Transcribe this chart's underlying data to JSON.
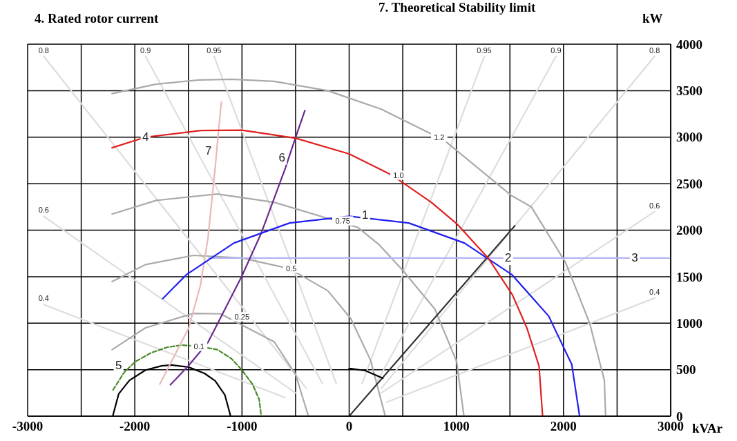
{
  "chart_data": {
    "type": "line",
    "xlabel": "kVAr",
    "ylabel": "kW",
    "xlim": [
      -3000,
      3000
    ],
    "ylim": [
      0,
      4000
    ],
    "xticks": [
      -3000,
      {
        "value": -2500,
        "label": null
      },
      -2000,
      {
        "value": -1500,
        "label": null
      },
      -1000,
      {
        "value": -500,
        "label": null
      },
      0,
      {
        "value": 500,
        "label": null
      },
      1000,
      {
        "value": 1500,
        "label": null
      },
      2000,
      {
        "value": 2500,
        "label": null
      },
      3000
    ],
    "yticks": [
      0,
      500,
      1000,
      1500,
      2000,
      2500,
      3000,
      3500,
      4000
    ],
    "grid": true,
    "legend": false,
    "series": [
      {
        "color": "#dddddd",
        "x": [
          -2850,
          -400
        ],
        "values": [
          3870,
          300
        ]
      },
      {
        "color": "#dddddd",
        "x": [
          -1900,
          -250
        ],
        "values": [
          3870,
          350
        ]
      },
      {
        "color": "#dddddd",
        "x": [
          -1260,
          -120
        ],
        "values": [
          3870,
          350
        ]
      },
      {
        "color": "#dddddd",
        "x": [
          -2850,
          -500
        ],
        "values": [
          2150,
          250
        ]
      },
      {
        "color": "#dddddd",
        "x": [
          -2850,
          -600
        ],
        "values": [
          1200,
          200
        ]
      },
      {
        "color": "#dddddd",
        "x": [
          1260,
          120
        ],
        "values": [
          3870,
          350
        ]
      },
      {
        "color": "#dddddd",
        "x": [
          1930,
          250
        ],
        "values": [
          3870,
          350
        ]
      },
      {
        "color": "#dddddd",
        "x": [
          2850,
          300
        ],
        "values": [
          3870,
          300
        ]
      },
      {
        "color": "#dddddd",
        "x": [
          2850,
          300
        ],
        "values": [
          2200,
          250
        ]
      },
      {
        "color": "#dddddd",
        "x": [
          2850,
          350
        ],
        "values": [
          1270,
          150
        ]
      },
      {
        "color": "#aaaaaa",
        "x": [
          -2212,
          -1800,
          -1400,
          -1092,
          -700,
          -200,
          300,
          890,
          1510,
          1700,
          2020,
          2244,
          2381,
          2393
        ],
        "values": [
          3468,
          3570,
          3615,
          3622,
          3600,
          3500,
          3300,
          2964,
          2375,
          2250,
          1650,
          1000,
          386,
          0
        ]
      },
      {
        "color": "#aaaaaa",
        "x": [
          -2212,
          -1800,
          -1229,
          -700,
          80,
          282,
          507,
          800,
          1003,
          1071
        ],
        "values": [
          2173,
          2320,
          2389,
          2300,
          2030,
          1841,
          1558,
          1150,
          586,
          0
        ]
      },
      {
        "color": "#aaaaaa",
        "x": [
          -2212,
          -1900,
          -1452,
          -1000,
          -560,
          -200,
          16,
          200,
          337
        ],
        "values": [
          1447,
          1630,
          1729,
          1700,
          1587,
          1350,
          1048,
          600,
          0
        ]
      },
      {
        "color": "#aaaaaa",
        "x": [
          -2212,
          -1900,
          -1452,
          -1200,
          -700,
          -500,
          -380
        ],
        "values": [
          715,
          950,
          1105,
          1100,
          800,
          450,
          0
        ]
      },
      {
        "color": "#b4b4f4",
        "x": [
          -1308,
          3000
        ],
        "values": [
          1700,
          1700
        ]
      },
      {
        "color": "#333333",
        "x": [
          0,
          1545
        ],
        "values": [
          0,
          2047
        ]
      },
      {
        "color": "#000000",
        "x": [
          0,
          150,
          314
        ],
        "values": [
          513,
          490,
          408
        ]
      },
      {
        "color": "#000000",
        "x": [
          -2206,
          -2150,
          -2050,
          -1900,
          -1750,
          -1656,
          -1500,
          -1350,
          -1250,
          -1160,
          -1106
        ],
        "values": [
          0,
          240,
          385,
          495,
          541,
          550,
          528,
          460,
          380,
          230,
          0
        ]
      },
      {
        "color": "#4a8a2a",
        "line_style": "dashed",
        "x": [
          -2203,
          -2100,
          -1996,
          -1850,
          -1700,
          -1566,
          -1400,
          -1229,
          -1100,
          -1001,
          -900,
          -840,
          -820
        ],
        "values": [
          282,
          470,
          586,
          680,
          740,
          764,
          750,
          715,
          620,
          497,
          340,
          180,
          0
        ]
      },
      {
        "color": "#e8b8b8",
        "x": [
          -1767,
          -1498,
          -1387,
          -1317,
          -1249,
          -1236,
          -1193
        ],
        "values": [
          344,
          946,
          1410,
          1918,
          2685,
          2856,
          3375
        ]
      },
      {
        "color": "#6a2a90",
        "x": [
          -1668,
          -1504,
          -1317,
          -1001,
          -820,
          -594,
          -563,
          -502,
          -413
        ],
        "values": [
          337,
          536,
          794,
          1506,
          1969,
          2671,
          2780,
          2990,
          3286
        ]
      },
      {
        "color": "#2020f0",
        "x": [
          -1739,
          -1520,
          -1075,
          -556,
          0,
          556,
          1075,
          1520,
          1862,
          2077,
          2150
        ],
        "values": [
          1264,
          1520,
          1862,
          2077,
          2150,
          2077,
          1862,
          1520,
          1075,
          556,
          0
        ]
      },
      {
        "color": "#e02020",
        "x": [
          -2212,
          -1900,
          -1386,
          -1000,
          -502,
          0,
          393,
          766,
          1003,
          1297,
          1523,
          1659,
          1772,
          1805
        ],
        "values": [
          2886,
          3000,
          3071,
          3075,
          2990,
          2820,
          2596,
          2300,
          2070,
          1700,
          1305,
          946,
          536,
          0
        ]
      }
    ],
    "annotations": [
      "4. Rated rotor current",
      "7. Theoretical Stability limit",
      {
        "text": "0.8",
        "x": -2850,
        "y": 3870
      },
      {
        "text": "0.9",
        "x": -1900,
        "y": 3870
      },
      {
        "text": "0.95",
        "x": -1260,
        "y": 3870
      },
      {
        "text": "0.6",
        "x": -2850,
        "y": 2150
      },
      {
        "text": "0.4",
        "x": -2850,
        "y": 1200
      },
      {
        "text": "0.95",
        "x": 1260,
        "y": 3870
      },
      {
        "text": "0.9",
        "x": 1930,
        "y": 3870
      },
      {
        "text": "0.8",
        "x": 2850,
        "y": 3870
      },
      {
        "text": "0.6",
        "x": 2850,
        "y": 2200
      },
      {
        "text": "0.4",
        "x": 2850,
        "y": 1270
      },
      {
        "text": "4",
        "x": -1900,
        "y": 3000
      },
      {
        "text": "7",
        "x": -1236,
        "y": 2856
      },
      {
        "text": "6",
        "x": -563,
        "y": 2780
      },
      {
        "text": "1",
        "x": 150,
        "y": 2160
      },
      {
        "text": "2",
        "x": 1420,
        "y": 1700
      },
      {
        "text": "3",
        "x": 2600,
        "y": 1700
      },
      {
        "text": "5",
        "x": -2100,
        "y": 470
      },
      {
        "text": "0.1",
        "x": -1400,
        "y": 750
      },
      {
        "text": "0.25",
        "x": -1000,
        "y": 1070
      },
      {
        "text": "0.5",
        "x": -540,
        "y": 1590
      },
      {
        "text": "0.75",
        "x": -60,
        "y": 2100
      },
      {
        "text": "1.0",
        "x": 460,
        "y": 2590
      },
      {
        "text": "1.2",
        "x": 840,
        "y": 3000
      }
    ]
  }
}
